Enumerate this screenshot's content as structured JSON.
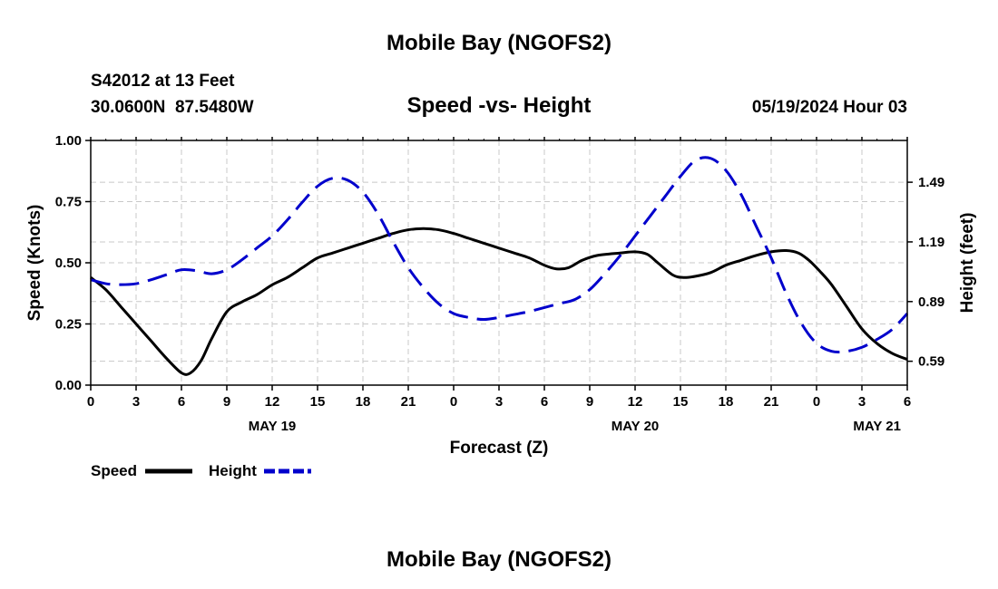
{
  "header": {
    "title": "Mobile Bay (NGOFS2)",
    "station": "S42012 at 13 Feet",
    "coords": "30.0600N  87.5480W",
    "subtitle": "Speed -vs- Height",
    "datetime": "05/19/2024 Hour 03",
    "footer_title": "Mobile Bay (NGOFS2)"
  },
  "colors": {
    "speed": "#000000",
    "height": "#0000cc",
    "grid": "#c8c8c8"
  },
  "chart_data": {
    "type": "line",
    "xlabel": "Forecast (Z)",
    "ylabel_left": "Speed (Knots)",
    "ylabel_right": "Height (feet)",
    "x_range": [
      0,
      54
    ],
    "ylim_left": [
      0,
      1
    ],
    "ylim_right": [
      0.47,
      1.7
    ],
    "grid": true,
    "legend_position": "bottom-left",
    "x_ticks": [
      {
        "x": 0,
        "label": "0"
      },
      {
        "x": 3,
        "label": "3"
      },
      {
        "x": 6,
        "label": "6"
      },
      {
        "x": 9,
        "label": "9"
      },
      {
        "x": 12,
        "label": "12"
      },
      {
        "x": 15,
        "label": "15"
      },
      {
        "x": 18,
        "label": "18"
      },
      {
        "x": 21,
        "label": "21"
      },
      {
        "x": 24,
        "label": "0"
      },
      {
        "x": 27,
        "label": "3"
      },
      {
        "x": 30,
        "label": "6"
      },
      {
        "x": 33,
        "label": "9"
      },
      {
        "x": 36,
        "label": "12"
      },
      {
        "x": 39,
        "label": "15"
      },
      {
        "x": 42,
        "label": "18"
      },
      {
        "x": 45,
        "label": "21"
      },
      {
        "x": 48,
        "label": "0"
      },
      {
        "x": 51,
        "label": "3"
      },
      {
        "x": 54,
        "label": "6"
      }
    ],
    "date_labels": [
      {
        "x": 12,
        "label": "MAY 19"
      },
      {
        "x": 36,
        "label": "MAY 20"
      },
      {
        "x": 52,
        "label": "MAY 21"
      }
    ],
    "y_ticks_left": [
      {
        "v": 0,
        "label": "0.00"
      },
      {
        "v": 0.25,
        "label": "0.25"
      },
      {
        "v": 0.5,
        "label": "0.50"
      },
      {
        "v": 0.75,
        "label": "0.75"
      },
      {
        "v": 1.0,
        "label": "1.00"
      }
    ],
    "y_ticks_right": [
      {
        "v": 0.59,
        "label": "0.59"
      },
      {
        "v": 0.89,
        "label": "0.89"
      },
      {
        "v": 1.19,
        "label": "1.19"
      },
      {
        "v": 1.49,
        "label": "1.49"
      }
    ],
    "series": [
      {
        "name": "Speed",
        "axis": "left",
        "style": "solid",
        "points": [
          [
            0,
            0.44
          ],
          [
            1,
            0.39
          ],
          [
            2,
            0.32
          ],
          [
            3,
            0.25
          ],
          [
            4,
            0.18
          ],
          [
            5,
            0.11
          ],
          [
            6,
            0.05
          ],
          [
            6.6,
            0.05
          ],
          [
            7.3,
            0.1
          ],
          [
            8,
            0.19
          ],
          [
            9,
            0.3
          ],
          [
            10,
            0.34
          ],
          [
            11,
            0.37
          ],
          [
            12,
            0.41
          ],
          [
            13,
            0.44
          ],
          [
            14,
            0.48
          ],
          [
            15,
            0.52
          ],
          [
            16,
            0.54
          ],
          [
            17,
            0.56
          ],
          [
            18,
            0.58
          ],
          [
            19,
            0.6
          ],
          [
            20,
            0.62
          ],
          [
            21,
            0.635
          ],
          [
            22,
            0.64
          ],
          [
            23,
            0.635
          ],
          [
            24,
            0.62
          ],
          [
            25,
            0.6
          ],
          [
            26,
            0.58
          ],
          [
            27,
            0.56
          ],
          [
            28,
            0.54
          ],
          [
            29,
            0.52
          ],
          [
            30,
            0.49
          ],
          [
            30.8,
            0.475
          ],
          [
            31.6,
            0.48
          ],
          [
            32.5,
            0.51
          ],
          [
            33.5,
            0.53
          ],
          [
            35,
            0.54
          ],
          [
            36,
            0.545
          ],
          [
            36.8,
            0.535
          ],
          [
            37.5,
            0.5
          ],
          [
            38.5,
            0.45
          ],
          [
            39.2,
            0.44
          ],
          [
            40,
            0.445
          ],
          [
            41,
            0.46
          ],
          [
            42,
            0.49
          ],
          [
            43,
            0.51
          ],
          [
            44,
            0.53
          ],
          [
            45,
            0.545
          ],
          [
            46,
            0.55
          ],
          [
            46.8,
            0.54
          ],
          [
            47.5,
            0.51
          ],
          [
            48.3,
            0.46
          ],
          [
            49,
            0.41
          ],
          [
            50,
            0.32
          ],
          [
            51,
            0.23
          ],
          [
            52,
            0.17
          ],
          [
            53,
            0.13
          ],
          [
            54,
            0.105
          ]
        ]
      },
      {
        "name": "Height",
        "axis": "right",
        "style": "dashed",
        "points": [
          [
            0,
            1.0
          ],
          [
            1,
            0.98
          ],
          [
            2,
            0.975
          ],
          [
            3,
            0.98
          ],
          [
            4,
            1.0
          ],
          [
            5,
            1.025
          ],
          [
            6,
            1.05
          ],
          [
            7,
            1.045
          ],
          [
            8,
            1.03
          ],
          [
            9,
            1.05
          ],
          [
            10,
            1.1
          ],
          [
            11,
            1.16
          ],
          [
            12,
            1.22
          ],
          [
            13,
            1.3
          ],
          [
            14,
            1.39
          ],
          [
            15,
            1.47
          ],
          [
            16,
            1.51
          ],
          [
            17,
            1.5
          ],
          [
            18,
            1.44
          ],
          [
            19,
            1.33
          ],
          [
            20,
            1.19
          ],
          [
            21,
            1.06
          ],
          [
            22,
            0.96
          ],
          [
            23,
            0.88
          ],
          [
            24,
            0.83
          ],
          [
            25,
            0.81
          ],
          [
            26,
            0.8
          ],
          [
            27,
            0.81
          ],
          [
            28,
            0.825
          ],
          [
            29,
            0.84
          ],
          [
            30,
            0.86
          ],
          [
            31,
            0.88
          ],
          [
            32,
            0.9
          ],
          [
            33,
            0.95
          ],
          [
            34,
            1.03
          ],
          [
            35,
            1.12
          ],
          [
            36,
            1.22
          ],
          [
            37,
            1.32
          ],
          [
            38,
            1.42
          ],
          [
            39,
            1.52
          ],
          [
            40,
            1.6
          ],
          [
            41,
            1.61
          ],
          [
            42,
            1.55
          ],
          [
            43,
            1.43
          ],
          [
            44,
            1.27
          ],
          [
            45,
            1.11
          ],
          [
            46,
            0.93
          ],
          [
            47,
            0.78
          ],
          [
            48,
            0.68
          ],
          [
            49,
            0.64
          ],
          [
            50,
            0.64
          ],
          [
            51,
            0.66
          ],
          [
            52,
            0.7
          ],
          [
            53,
            0.75
          ],
          [
            54,
            0.83
          ]
        ]
      }
    ]
  },
  "legend": {
    "speed_label": "Speed",
    "height_label": "Height"
  }
}
